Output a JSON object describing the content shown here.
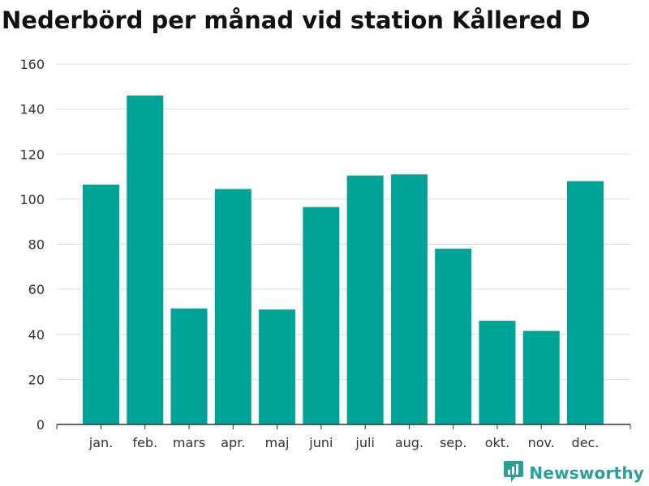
{
  "chart_data": {
    "type": "bar",
    "title": "Nederbörd per månad vid station Kållered D",
    "xlabel": "",
    "ylabel": "",
    "categories": [
      "jan.",
      "feb.",
      "mars",
      "apr.",
      "maj",
      "juni",
      "juli",
      "aug.",
      "sep.",
      "okt.",
      "nov.",
      "dec."
    ],
    "values": [
      106.5,
      146,
      51.5,
      104.5,
      51,
      96.5,
      110.5,
      111,
      78,
      46,
      41.5,
      108
    ],
    "ylim": [
      0,
      160
    ],
    "yticks": [
      0,
      20,
      40,
      60,
      80,
      100,
      120,
      140,
      160
    ],
    "grid": true,
    "legend": "none",
    "colors": {
      "bar": "#00a398",
      "grid": "#dddddd",
      "axis": "#333333"
    }
  },
  "brand": {
    "name": "Newsworthy",
    "icon": "newsworthy-logo-icon",
    "color": "#2aa198"
  }
}
